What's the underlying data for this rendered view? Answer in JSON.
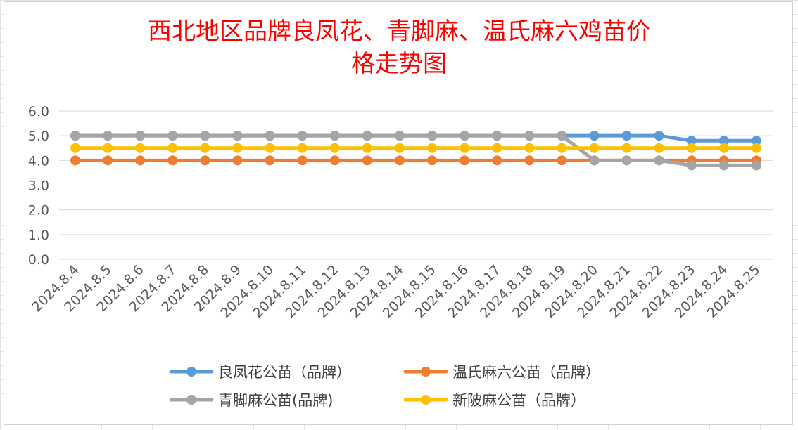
{
  "chart_data": {
    "type": "line",
    "title": "西北地区品牌良凤花、青脚麻、温氏麻六鸡苗价格走势图",
    "title_lines": [
      "西北地区品牌良凤花、青脚麻、温氏麻六鸡苗价",
      "格走势图"
    ],
    "categories": [
      "2024.8.4",
      "2024.8.5",
      "2024.8.6",
      "2024.8.7",
      "2024.8.8",
      "2024.8.9",
      "2024.8.10",
      "2024.8.11",
      "2024.8.12",
      "2024.8.13",
      "2024.8.14",
      "2024.8.15",
      "2024.8.16",
      "2024.8.17",
      "2024.8.18",
      "2024.8.19",
      "2024.8.20",
      "2024.8.21",
      "2024.8.22",
      "2024.8.23",
      "2024.8.24",
      "2024.8.25"
    ],
    "ylim": [
      0,
      6
    ],
    "y_ticks": [
      "0.0",
      "1.0",
      "2.0",
      "3.0",
      "4.0",
      "5.0",
      "6.0"
    ],
    "grid": true,
    "legend_position": "bottom",
    "series": [
      {
        "name": "良凤花公苗（品牌）",
        "color": "#5b9bd5",
        "values": [
          5,
          5,
          5,
          5,
          5,
          5,
          5,
          5,
          5,
          5,
          5,
          5,
          5,
          5,
          5,
          5,
          5,
          5,
          5,
          4.8,
          4.8,
          4.8
        ]
      },
      {
        "name": "温氏麻六公苗（品牌）",
        "color": "#ed7d31",
        "values": [
          4,
          4,
          4,
          4,
          4,
          4,
          4,
          4,
          4,
          4,
          4,
          4,
          4,
          4,
          4,
          4,
          4,
          4,
          4,
          4,
          4,
          4
        ]
      },
      {
        "name": "青脚麻公苗(品牌)",
        "color": "#a5a5a5",
        "values": [
          5,
          5,
          5,
          5,
          5,
          5,
          5,
          5,
          5,
          5,
          5,
          5,
          5,
          5,
          5,
          5,
          4,
          4,
          4,
          3.8,
          3.8,
          3.8
        ]
      },
      {
        "name": "新陂麻公苗（品牌）",
        "color": "#ffc000",
        "values": [
          4.5,
          4.5,
          4.5,
          4.5,
          4.5,
          4.5,
          4.5,
          4.5,
          4.5,
          4.5,
          4.5,
          4.5,
          4.5,
          4.5,
          4.5,
          4.5,
          4.5,
          4.5,
          4.5,
          4.5,
          4.5,
          4.5
        ]
      }
    ],
    "legend_order": [
      0,
      1,
      2,
      3
    ]
  }
}
